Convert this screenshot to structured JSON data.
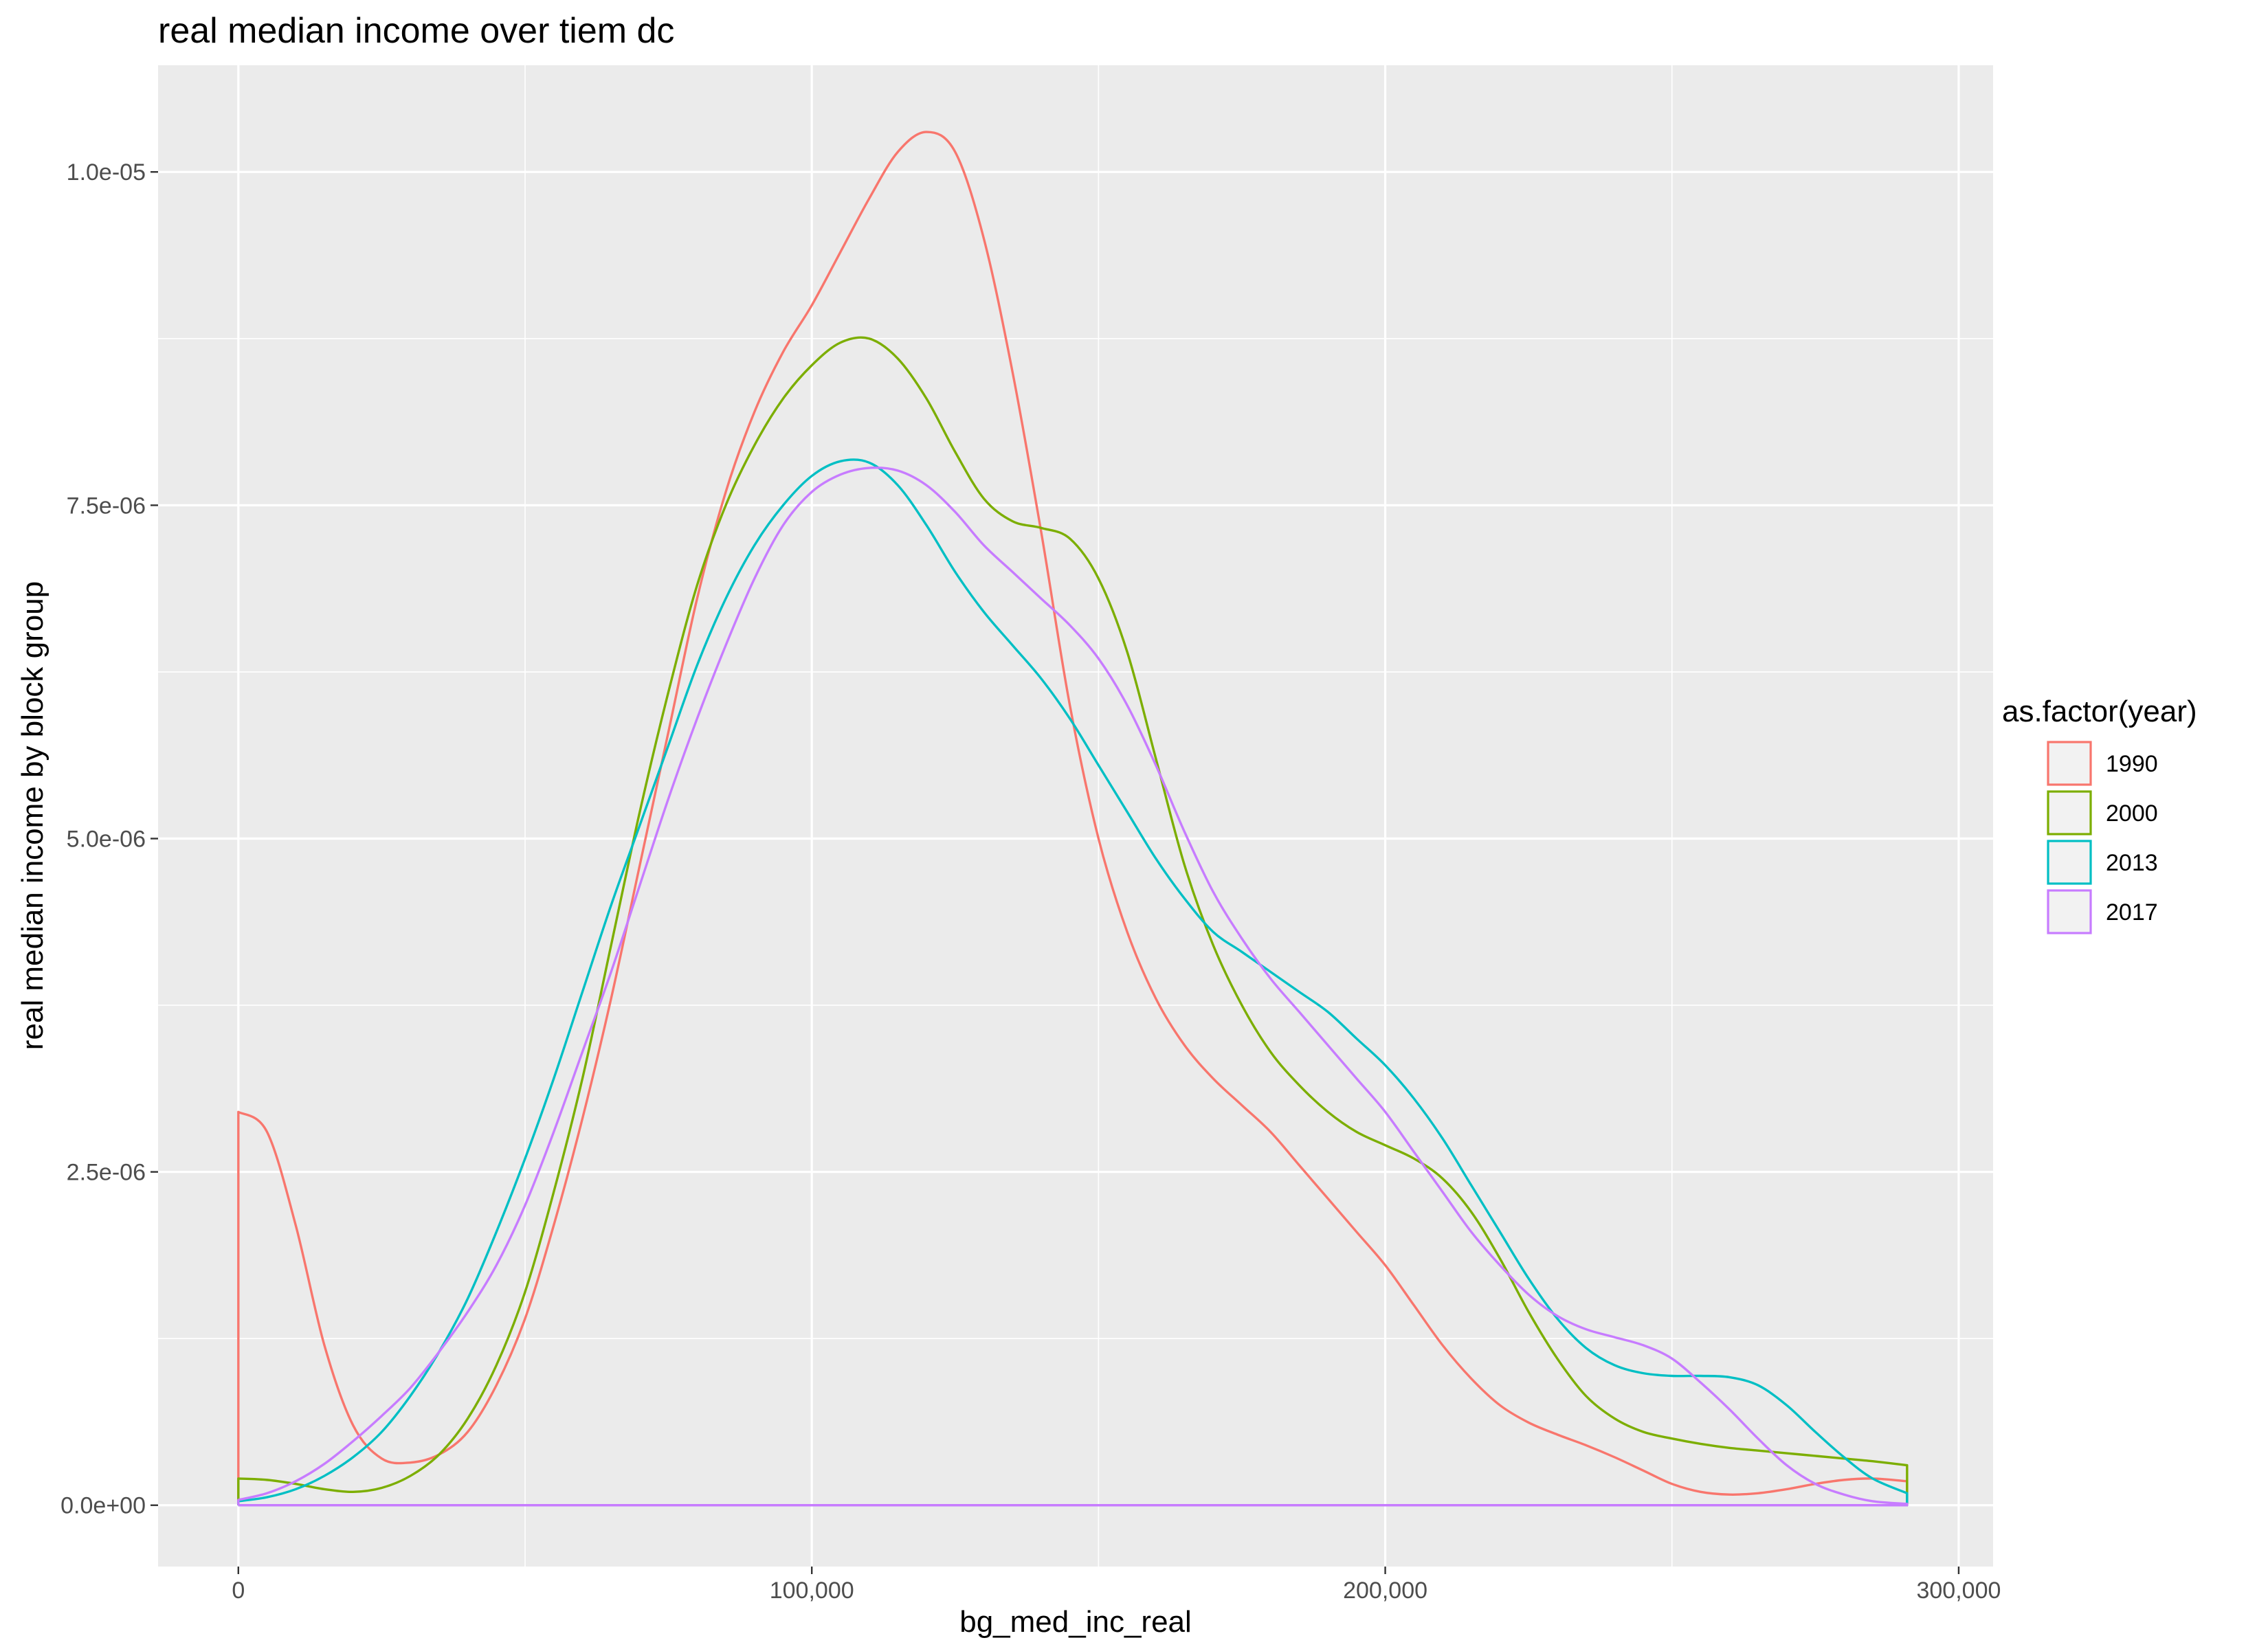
{
  "chart_data": {
    "type": "line",
    "title": "real median income over tiem dc",
    "xlabel": "bg_med_inc_real",
    "ylabel": "real median income by block group",
    "xlim": [
      -14000,
      306000
    ],
    "ylim": [
      -4.6e-07,
      1.08e-05
    ],
    "x_ticks": [
      {
        "value": 0,
        "label": "0"
      },
      {
        "value": 100000,
        "label": "100,000"
      },
      {
        "value": 200000,
        "label": "200,000"
      },
      {
        "value": 300000,
        "label": "300,000"
      }
    ],
    "y_ticks": [
      {
        "value": 0,
        "label": "0.0e+00"
      },
      {
        "value": 2.5e-06,
        "label": "2.5e-06"
      },
      {
        "value": 5e-06,
        "label": "5.0e-06"
      },
      {
        "value": 7.5e-06,
        "label": "7.5e-06"
      },
      {
        "value": 1e-05,
        "label": "1.0e-05"
      }
    ],
    "grid": true,
    "legend": {
      "title": "as.factor(year)",
      "position": "right"
    },
    "series": [
      {
        "name": "1990",
        "color": "#F8766D",
        "points": [
          [
            0,
            0
          ],
          [
            0,
            2.95e-06
          ],
          [
            5000,
            2.8e-06
          ],
          [
            10000,
            2.1e-06
          ],
          [
            15000,
            1.2e-06
          ],
          [
            20000,
            6e-07
          ],
          [
            25000,
            3.5e-07
          ],
          [
            30000,
            3.2e-07
          ],
          [
            35000,
            3.8e-07
          ],
          [
            40000,
            5.5e-07
          ],
          [
            45000,
            9e-07
          ],
          [
            50000,
            1.4e-06
          ],
          [
            55000,
            2.1e-06
          ],
          [
            60000,
            2.9e-06
          ],
          [
            65000,
            3.8e-06
          ],
          [
            70000,
            4.8e-06
          ],
          [
            75000,
            5.8e-06
          ],
          [
            80000,
            6.8e-06
          ],
          [
            85000,
            7.6e-06
          ],
          [
            90000,
            8.2e-06
          ],
          [
            95000,
            8.65e-06
          ],
          [
            100000,
            9e-06
          ],
          [
            105000,
            9.4e-06
          ],
          [
            110000,
            9.8e-06
          ],
          [
            115000,
            1.015e-05
          ],
          [
            120000,
            1.03e-05
          ],
          [
            125000,
            1.015e-05
          ],
          [
            130000,
            9.5e-06
          ],
          [
            135000,
            8.5e-06
          ],
          [
            140000,
            7.3e-06
          ],
          [
            145000,
            6e-06
          ],
          [
            150000,
            5e-06
          ],
          [
            155000,
            4.3e-06
          ],
          [
            160000,
            3.8e-06
          ],
          [
            165000,
            3.45e-06
          ],
          [
            170000,
            3.2e-06
          ],
          [
            175000,
            3e-06
          ],
          [
            180000,
            2.8e-06
          ],
          [
            185000,
            2.55e-06
          ],
          [
            190000,
            2.3e-06
          ],
          [
            195000,
            2.05e-06
          ],
          [
            200000,
            1.8e-06
          ],
          [
            205000,
            1.5e-06
          ],
          [
            210000,
            1.2e-06
          ],
          [
            215000,
            9.5e-07
          ],
          [
            220000,
            7.5e-07
          ],
          [
            225000,
            6.2e-07
          ],
          [
            230000,
            5.3e-07
          ],
          [
            235000,
            4.5e-07
          ],
          [
            240000,
            3.6e-07
          ],
          [
            245000,
            2.6e-07
          ],
          [
            250000,
            1.6e-07
          ],
          [
            255000,
            1e-07
          ],
          [
            260000,
            8e-08
          ],
          [
            265000,
            9e-08
          ],
          [
            270000,
            1.2e-07
          ],
          [
            275000,
            1.6e-07
          ],
          [
            280000,
            1.9e-07
          ],
          [
            285000,
            2e-07
          ],
          [
            291000,
            1.8e-07
          ],
          [
            291000,
            0
          ],
          [
            0,
            0
          ]
        ]
      },
      {
        "name": "2000",
        "color": "#7CAE00",
        "points": [
          [
            0,
            0
          ],
          [
            0,
            2e-07
          ],
          [
            5000,
            1.9e-07
          ],
          [
            10000,
            1.6e-07
          ],
          [
            15000,
            1.2e-07
          ],
          [
            20000,
            1e-07
          ],
          [
            25000,
            1.3e-07
          ],
          [
            30000,
            2.2e-07
          ],
          [
            35000,
            3.8e-07
          ],
          [
            40000,
            6.5e-07
          ],
          [
            45000,
            1.05e-06
          ],
          [
            50000,
            1.6e-06
          ],
          [
            55000,
            2.35e-06
          ],
          [
            60000,
            3.2e-06
          ],
          [
            65000,
            4.2e-06
          ],
          [
            70000,
            5.2e-06
          ],
          [
            75000,
            6.1e-06
          ],
          [
            80000,
            6.9e-06
          ],
          [
            85000,
            7.5e-06
          ],
          [
            90000,
            7.95e-06
          ],
          [
            95000,
            8.3e-06
          ],
          [
            100000,
            8.55e-06
          ],
          [
            105000,
            8.72e-06
          ],
          [
            110000,
            8.75e-06
          ],
          [
            115000,
            8.6e-06
          ],
          [
            120000,
            8.3e-06
          ],
          [
            125000,
            7.9e-06
          ],
          [
            130000,
            7.55e-06
          ],
          [
            135000,
            7.38e-06
          ],
          [
            140000,
            7.33e-06
          ],
          [
            145000,
            7.25e-06
          ],
          [
            150000,
            6.95e-06
          ],
          [
            155000,
            6.4e-06
          ],
          [
            160000,
            5.6e-06
          ],
          [
            165000,
            4.8e-06
          ],
          [
            170000,
            4.2e-06
          ],
          [
            175000,
            3.75e-06
          ],
          [
            180000,
            3.4e-06
          ],
          [
            185000,
            3.15e-06
          ],
          [
            190000,
            2.95e-06
          ],
          [
            195000,
            2.8e-06
          ],
          [
            200000,
            2.7e-06
          ],
          [
            205000,
            2.6e-06
          ],
          [
            210000,
            2.45e-06
          ],
          [
            215000,
            2.2e-06
          ],
          [
            220000,
            1.85e-06
          ],
          [
            225000,
            1.45e-06
          ],
          [
            230000,
            1.1e-06
          ],
          [
            235000,
            8.2e-07
          ],
          [
            240000,
            6.5e-07
          ],
          [
            245000,
            5.5e-07
          ],
          [
            250000,
            5e-07
          ],
          [
            255000,
            4.6e-07
          ],
          [
            260000,
            4.3e-07
          ],
          [
            265000,
            4.1e-07
          ],
          [
            270000,
            3.9e-07
          ],
          [
            275000,
            3.7e-07
          ],
          [
            280000,
            3.5e-07
          ],
          [
            285000,
            3.3e-07
          ],
          [
            291000,
            3e-07
          ],
          [
            291000,
            0
          ],
          [
            0,
            0
          ]
        ]
      },
      {
        "name": "2013",
        "color": "#00BFC4",
        "points": [
          [
            0,
            0
          ],
          [
            0,
            3e-08
          ],
          [
            5000,
            6e-08
          ],
          [
            10000,
            1.2e-07
          ],
          [
            15000,
            2.2e-07
          ],
          [
            20000,
            3.6e-07
          ],
          [
            25000,
            5.5e-07
          ],
          [
            30000,
            8.2e-07
          ],
          [
            35000,
            1.15e-06
          ],
          [
            40000,
            1.55e-06
          ],
          [
            45000,
            2.05e-06
          ],
          [
            50000,
            2.6e-06
          ],
          [
            55000,
            3.2e-06
          ],
          [
            60000,
            3.85e-06
          ],
          [
            65000,
            4.5e-06
          ],
          [
            70000,
            5.1e-06
          ],
          [
            75000,
            5.7e-06
          ],
          [
            80000,
            6.3e-06
          ],
          [
            85000,
            6.8e-06
          ],
          [
            90000,
            7.2e-06
          ],
          [
            95000,
            7.5e-06
          ],
          [
            100000,
            7.72e-06
          ],
          [
            105000,
            7.83e-06
          ],
          [
            110000,
            7.82e-06
          ],
          [
            115000,
            7.65e-06
          ],
          [
            120000,
            7.35e-06
          ],
          [
            125000,
            7e-06
          ],
          [
            130000,
            6.7e-06
          ],
          [
            135000,
            6.45e-06
          ],
          [
            140000,
            6.2e-06
          ],
          [
            145000,
            5.9e-06
          ],
          [
            150000,
            5.55e-06
          ],
          [
            155000,
            5.2e-06
          ],
          [
            160000,
            4.85e-06
          ],
          [
            165000,
            4.55e-06
          ],
          [
            170000,
            4.3e-06
          ],
          [
            175000,
            4.15e-06
          ],
          [
            180000,
            4e-06
          ],
          [
            185000,
            3.85e-06
          ],
          [
            190000,
            3.7e-06
          ],
          [
            195000,
            3.5e-06
          ],
          [
            200000,
            3.3e-06
          ],
          [
            205000,
            3.05e-06
          ],
          [
            210000,
            2.75e-06
          ],
          [
            215000,
            2.4e-06
          ],
          [
            220000,
            2.05e-06
          ],
          [
            225000,
            1.7e-06
          ],
          [
            230000,
            1.4e-06
          ],
          [
            235000,
            1.18e-06
          ],
          [
            240000,
            1.05e-06
          ],
          [
            245000,
            9.9e-07
          ],
          [
            250000,
            9.7e-07
          ],
          [
            255000,
            9.7e-07
          ],
          [
            260000,
            9.6e-07
          ],
          [
            265000,
            9e-07
          ],
          [
            270000,
            7.5e-07
          ],
          [
            275000,
            5.5e-07
          ],
          [
            280000,
            3.6e-07
          ],
          [
            285000,
            2e-07
          ],
          [
            291000,
            9e-08
          ],
          [
            291000,
            0
          ],
          [
            0,
            0
          ]
        ]
      },
      {
        "name": "2017",
        "color": "#C77CFF",
        "points": [
          [
            0,
            0
          ],
          [
            0,
            4e-08
          ],
          [
            5000,
            9e-08
          ],
          [
            10000,
            1.8e-07
          ],
          [
            15000,
            3.1e-07
          ],
          [
            20000,
            4.8e-07
          ],
          [
            25000,
            6.7e-07
          ],
          [
            30000,
            8.8e-07
          ],
          [
            35000,
            1.15e-06
          ],
          [
            40000,
            1.45e-06
          ],
          [
            45000,
            1.8e-06
          ],
          [
            50000,
            2.25e-06
          ],
          [
            55000,
            2.8e-06
          ],
          [
            60000,
            3.4e-06
          ],
          [
            65000,
            4e-06
          ],
          [
            70000,
            4.65e-06
          ],
          [
            75000,
            5.3e-06
          ],
          [
            80000,
            5.9e-06
          ],
          [
            85000,
            6.45e-06
          ],
          [
            90000,
            6.95e-06
          ],
          [
            95000,
            7.35e-06
          ],
          [
            100000,
            7.6e-06
          ],
          [
            105000,
            7.73e-06
          ],
          [
            110000,
            7.78e-06
          ],
          [
            115000,
            7.76e-06
          ],
          [
            120000,
            7.65e-06
          ],
          [
            125000,
            7.45e-06
          ],
          [
            130000,
            7.2e-06
          ],
          [
            135000,
            7e-06
          ],
          [
            140000,
            6.8e-06
          ],
          [
            145000,
            6.6e-06
          ],
          [
            150000,
            6.35e-06
          ],
          [
            155000,
            6e-06
          ],
          [
            160000,
            5.55e-06
          ],
          [
            165000,
            5.05e-06
          ],
          [
            170000,
            4.6e-06
          ],
          [
            175000,
            4.25e-06
          ],
          [
            180000,
            3.95e-06
          ],
          [
            185000,
            3.7e-06
          ],
          [
            190000,
            3.45e-06
          ],
          [
            195000,
            3.2e-06
          ],
          [
            200000,
            2.95e-06
          ],
          [
            205000,
            2.65e-06
          ],
          [
            210000,
            2.35e-06
          ],
          [
            215000,
            2.05e-06
          ],
          [
            220000,
            1.8e-06
          ],
          [
            225000,
            1.58e-06
          ],
          [
            230000,
            1.42e-06
          ],
          [
            235000,
            1.32e-06
          ],
          [
            240000,
            1.26e-06
          ],
          [
            245000,
            1.2e-06
          ],
          [
            250000,
            1.1e-06
          ],
          [
            255000,
            9.2e-07
          ],
          [
            260000,
            7.2e-07
          ],
          [
            265000,
            5e-07
          ],
          [
            270000,
            3e-07
          ],
          [
            275000,
            1.6e-07
          ],
          [
            280000,
            8e-08
          ],
          [
            285000,
            3e-08
          ],
          [
            291000,
            1e-08
          ],
          [
            291000,
            0
          ],
          [
            0,
            0
          ]
        ]
      }
    ]
  }
}
